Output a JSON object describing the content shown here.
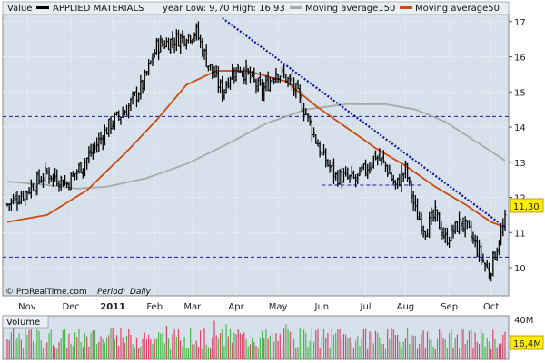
{
  "chart_data": [
    {
      "type": "candlestick",
      "legend": {
        "value_label": "Value",
        "symbol": "APPLIED MATERIALS",
        "range_text": "year Low: 9,70 High: 16,93",
        "ma150_label": "Moving average150",
        "ma50_label": "Moving average50"
      },
      "colors": {
        "background": "#d6e1eb",
        "price": "#000000",
        "ma150": "#a9a9a9",
        "ma50": "#cc4a10",
        "trendline": "#1111aa",
        "hline": "#1a1aa0",
        "last_value_box": "#ffee00"
      },
      "ylim": [
        9.2,
        17.2
      ],
      "y_ticks": [
        10,
        11,
        12,
        13,
        14,
        15,
        16,
        17
      ],
      "x_months": [
        "Nov",
        "Dec",
        "2011",
        "Feb",
        "Mar",
        "Apr",
        "May",
        "Jun",
        "Jul",
        "Aug",
        "Sep",
        "Oct"
      ],
      "last_value": "11,30",
      "horizontal_lines": [
        14.3,
        10.3
      ],
      "support_segment": {
        "from": "Jun",
        "to": "Aug",
        "value": 12.35
      },
      "price_anchors": [
        [
          0,
          11.8
        ],
        [
          8,
          12.1
        ],
        [
          20,
          12.7
        ],
        [
          30,
          12.4
        ],
        [
          40,
          13.1
        ],
        [
          52,
          14.1
        ],
        [
          60,
          14.5
        ],
        [
          68,
          15.2
        ],
        [
          75,
          16.3
        ],
        [
          85,
          16.5
        ],
        [
          95,
          16.7
        ],
        [
          100,
          15.9
        ],
        [
          108,
          15.0
        ],
        [
          112,
          15.5
        ],
        [
          117,
          15.7
        ],
        [
          122,
          15.4
        ],
        [
          128,
          15.0
        ],
        [
          135,
          15.6
        ],
        [
          140,
          15.4
        ],
        [
          145,
          15.0
        ],
        [
          150,
          14.4
        ],
        [
          158,
          13.2
        ],
        [
          165,
          12.6
        ],
        [
          175,
          12.5
        ],
        [
          180,
          12.8
        ],
        [
          185,
          13.2
        ],
        [
          190,
          12.9
        ],
        [
          195,
          12.3
        ],
        [
          200,
          12.8
        ],
        [
          205,
          11.6
        ],
        [
          210,
          11.1
        ],
        [
          215,
          11.5
        ],
        [
          220,
          10.8
        ],
        [
          228,
          11.3
        ],
        [
          232,
          11.0
        ],
        [
          238,
          10.3
        ],
        [
          242,
          9.85
        ],
        [
          246,
          10.6
        ],
        [
          250,
          11.3
        ]
      ],
      "ma50_anchors": [
        [
          0,
          11.3
        ],
        [
          20,
          11.5
        ],
        [
          40,
          12.2
        ],
        [
          60,
          13.3
        ],
        [
          75,
          14.2
        ],
        [
          90,
          15.2
        ],
        [
          105,
          15.6
        ],
        [
          120,
          15.6
        ],
        [
          140,
          15.3
        ],
        [
          155,
          14.6
        ],
        [
          170,
          14.0
        ],
        [
          185,
          13.4
        ],
        [
          200,
          12.9
        ],
        [
          215,
          12.3
        ],
        [
          230,
          11.8
        ],
        [
          243,
          11.3
        ],
        [
          250,
          11.15
        ]
      ],
      "ma150_anchors": [
        [
          0,
          12.45
        ],
        [
          20,
          12.35
        ],
        [
          35,
          12.25
        ],
        [
          50,
          12.3
        ],
        [
          70,
          12.55
        ],
        [
          90,
          12.95
        ],
        [
          110,
          13.5
        ],
        [
          130,
          14.1
        ],
        [
          150,
          14.5
        ],
        [
          170,
          14.65
        ],
        [
          190,
          14.65
        ],
        [
          205,
          14.5
        ],
        [
          220,
          14.15
        ],
        [
          235,
          13.6
        ],
        [
          250,
          13.05
        ]
      ],
      "trendline": {
        "from": [
          108,
          17.1
        ],
        "to": [
          250,
          11.15
        ]
      }
    },
    {
      "type": "bar",
      "title": "Volume",
      "y_tick_label": "40M",
      "last_value": "16,4M",
      "colors": {
        "up": "#44bb44",
        "down": "#dd4466",
        "background": "#d6e1eb"
      }
    }
  ],
  "footer": {
    "source": "© ProRealTime.com",
    "period_label": "Period:",
    "period_value": "Daily"
  }
}
